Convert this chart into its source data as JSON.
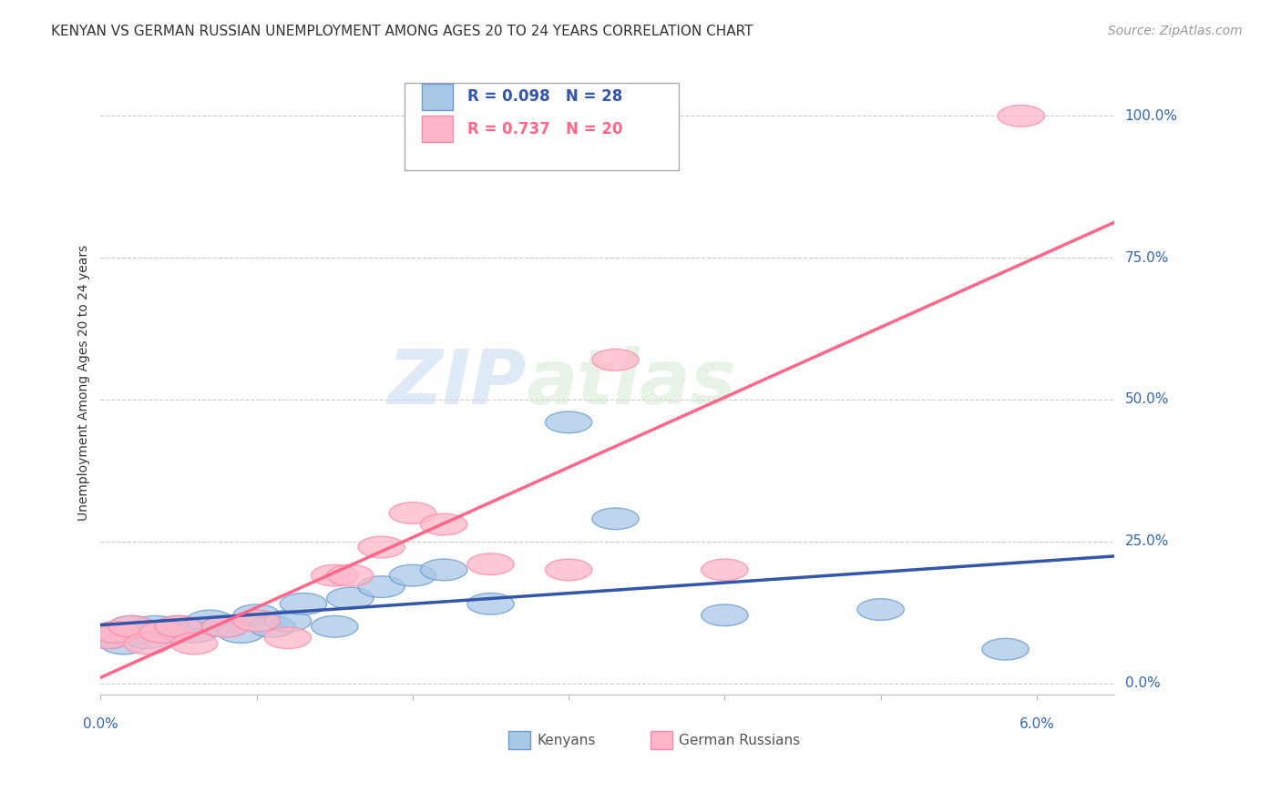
{
  "title": "KENYAN VS GERMAN RUSSIAN UNEMPLOYMENT AMONG AGES 20 TO 24 YEARS CORRELATION CHART",
  "source": "Source: ZipAtlas.com",
  "ylabel": "Unemployment Among Ages 20 to 24 years",
  "ytick_labels": [
    "0.0%",
    "25.0%",
    "50.0%",
    "75.0%",
    "100.0%"
  ],
  "ytick_values": [
    0.0,
    0.25,
    0.5,
    0.75,
    1.0
  ],
  "xlim": [
    0.0,
    0.065
  ],
  "ylim": [
    -0.02,
    1.08
  ],
  "watermark_zip": "ZIP",
  "watermark_atlas": "atlas",
  "legend1_r": "R = 0.098",
  "legend1_n": "N = 28",
  "legend2_r": "R = 0.737",
  "legend2_n": "N = 20",
  "kenyan_color": "#A8C8E8",
  "german_russian_color": "#FFB6C8",
  "kenyan_edge_color": "#6699CC",
  "german_russian_edge_color": "#FF88AA",
  "kenyan_line_color": "#3355AA",
  "german_russian_line_color": "#FF6688",
  "kenyan_x": [
    0.0005,
    0.001,
    0.0015,
    0.002,
    0.0025,
    0.003,
    0.0035,
    0.004,
    0.005,
    0.006,
    0.007,
    0.008,
    0.009,
    0.01,
    0.011,
    0.012,
    0.013,
    0.015,
    0.016,
    0.018,
    0.02,
    0.022,
    0.025,
    0.03,
    0.033,
    0.04,
    0.05,
    0.058
  ],
  "kenyan_y": [
    0.08,
    0.09,
    0.07,
    0.1,
    0.09,
    0.08,
    0.1,
    0.09,
    0.1,
    0.09,
    0.11,
    0.1,
    0.09,
    0.12,
    0.1,
    0.11,
    0.14,
    0.1,
    0.15,
    0.17,
    0.19,
    0.2,
    0.14,
    0.46,
    0.29,
    0.12,
    0.13,
    0.06
  ],
  "german_russian_x": [
    0.0005,
    0.001,
    0.002,
    0.003,
    0.004,
    0.005,
    0.006,
    0.008,
    0.01,
    0.012,
    0.015,
    0.016,
    0.018,
    0.02,
    0.022,
    0.025,
    0.03,
    0.033,
    0.04,
    0.059
  ],
  "german_russian_y": [
    0.08,
    0.09,
    0.1,
    0.07,
    0.09,
    0.1,
    0.07,
    0.1,
    0.11,
    0.08,
    0.19,
    0.19,
    0.24,
    0.3,
    0.28,
    0.21,
    0.2,
    0.57,
    0.2,
    1.0
  ],
  "background_color": "#FFFFFF",
  "grid_color": "#CCCCCC",
  "bottom_legend_items": [
    {
      "label": "Kenyans",
      "color": "#A8C8E8",
      "edge": "#6699CC"
    },
    {
      "label": "German Russians",
      "color": "#FFB6C8",
      "edge": "#FF88AA"
    }
  ]
}
